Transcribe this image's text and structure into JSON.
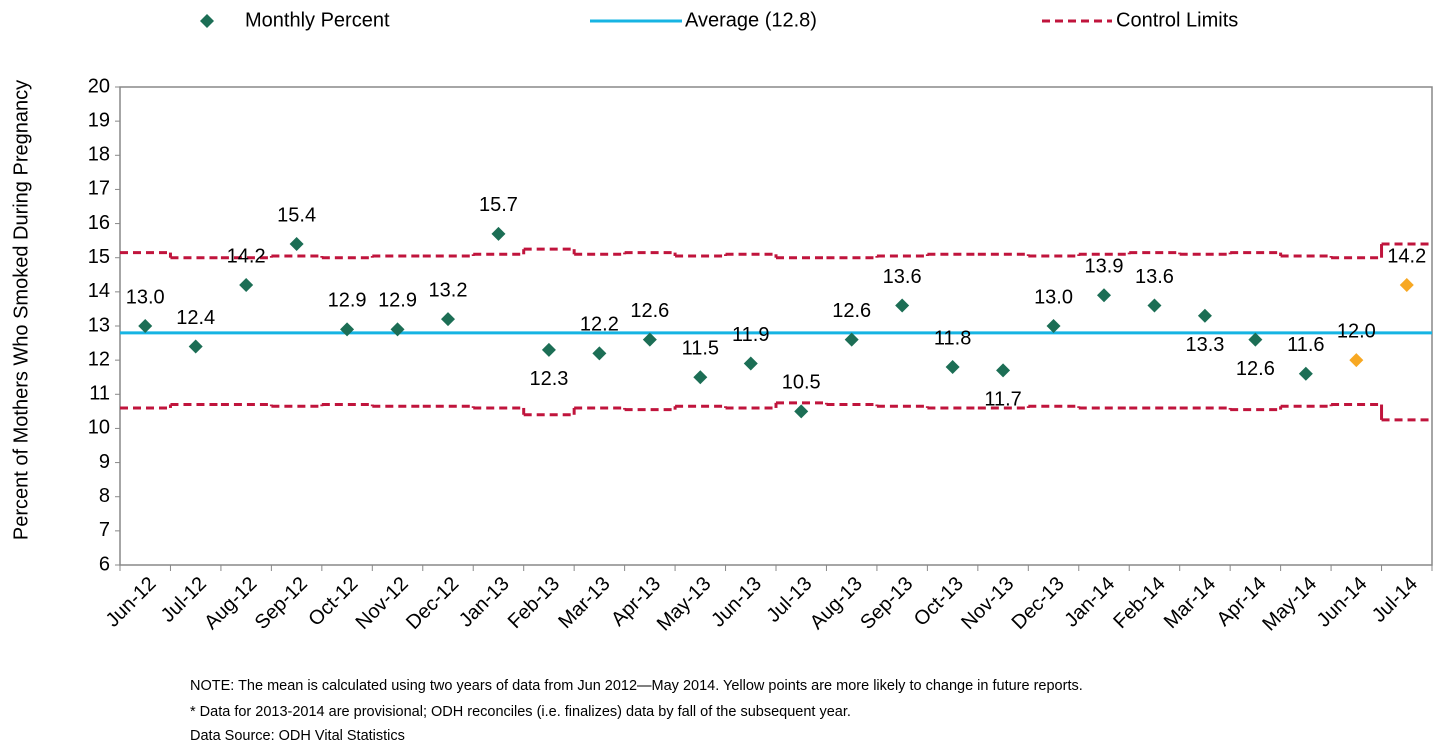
{
  "chart_data": {
    "type": "control",
    "y_label": "Percent of Mothers Who Smoked During Pregnancy",
    "categories": [
      "Jun-12",
      "Jul-12",
      "Aug-12",
      "Sep-12",
      "Oct-12",
      "Nov-12",
      "Dec-12",
      "Jan-13",
      "Feb-13",
      "Mar-13",
      "Apr-13",
      "May-13",
      "Jun-13",
      "Jul-13",
      "Aug-13",
      "Sep-13",
      "Oct-13",
      "Nov-13",
      "Dec-13",
      "Jan-14",
      "Feb-14",
      "Mar-14",
      "Apr-14",
      "May-14",
      "Jun-14",
      "Jul-14"
    ],
    "series": [
      {
        "name": "Monthly Percent",
        "color": "#1c6e55",
        "values": [
          13.0,
          12.4,
          14.2,
          15.4,
          12.9,
          12.9,
          13.2,
          15.7,
          12.3,
          12.2,
          12.6,
          11.5,
          11.9,
          10.5,
          12.6,
          13.6,
          11.8,
          11.7,
          13.0,
          13.9,
          13.6,
          13.3,
          12.6,
          11.6,
          12.0,
          14.2
        ],
        "value_labels": [
          "13.0",
          "12.4",
          "14.2",
          "15.4",
          "12.9",
          "12.9",
          "13.2",
          "15.7",
          "12.3",
          "12.2",
          "12.6",
          "11.5",
          "11.9",
          "10.5",
          "12.6",
          "13.6",
          "11.8",
          "11.7",
          "13.0",
          "13.9",
          "13.6",
          "13.3",
          "12.6",
          "11.6",
          "12.0",
          "14.2"
        ],
        "point_colors": [
          "#1c6e55",
          "#1c6e55",
          "#1c6e55",
          "#1c6e55",
          "#1c6e55",
          "#1c6e55",
          "#1c6e55",
          "#1c6e55",
          "#1c6e55",
          "#1c6e55",
          "#1c6e55",
          "#1c6e55",
          "#1c6e55",
          "#1c6e55",
          "#1c6e55",
          "#1c6e55",
          "#1c6e55",
          "#1c6e55",
          "#1c6e55",
          "#1c6e55",
          "#1c6e55",
          "#1c6e55",
          "#1c6e55",
          "#1c6e55",
          "#f7a823",
          "#f7a823"
        ]
      }
    ],
    "average": {
      "name": "Average (12.8)",
      "value": 12.8,
      "color": "#16b4e3"
    },
    "control_limits": {
      "name": "Control Limits",
      "color": "#c0143c",
      "upper": [
        15.15,
        15.0,
        15.0,
        15.05,
        15.0,
        15.05,
        15.05,
        15.1,
        15.25,
        15.1,
        15.15,
        15.05,
        15.1,
        15.0,
        15.0,
        15.05,
        15.1,
        15.1,
        15.05,
        15.1,
        15.15,
        15.1,
        15.15,
        15.05,
        15.0,
        15.4
      ],
      "lower": [
        10.6,
        10.7,
        10.7,
        10.65,
        10.7,
        10.65,
        10.65,
        10.6,
        10.4,
        10.6,
        10.55,
        10.65,
        10.6,
        10.75,
        10.7,
        10.65,
        10.6,
        10.6,
        10.65,
        10.6,
        10.6,
        10.6,
        10.55,
        10.65,
        10.7,
        10.25
      ]
    },
    "ylim": [
      6,
      20
    ],
    "yticks": [
      6,
      7,
      8,
      9,
      10,
      11,
      12,
      13,
      14,
      15,
      16,
      17,
      18,
      19,
      20
    ],
    "notes": [
      "NOTE: The mean is calculated using two years of data from Jun 2012—May 2014.  Yellow points are more likely to change in future reports.",
      "* Data for 2013-2014 are provisional; ODH reconciles (i.e. finalizes) data by fall of the subsequent year.",
      "Data Source: ODH Vital Statistics"
    ]
  }
}
